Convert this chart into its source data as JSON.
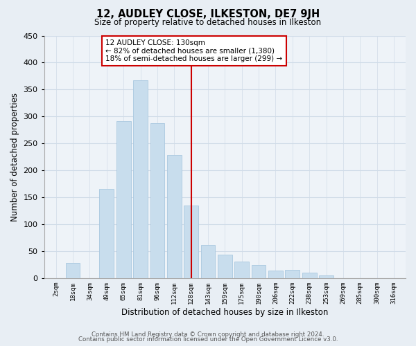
{
  "title": "12, AUDLEY CLOSE, ILKESTON, DE7 9JH",
  "subtitle": "Size of property relative to detached houses in Ilkeston",
  "xlabel": "Distribution of detached houses by size in Ilkeston",
  "ylabel": "Number of detached properties",
  "bar_labels": [
    "2sqm",
    "18sqm",
    "34sqm",
    "49sqm",
    "65sqm",
    "81sqm",
    "96sqm",
    "112sqm",
    "128sqm",
    "143sqm",
    "159sqm",
    "175sqm",
    "190sqm",
    "206sqm",
    "222sqm",
    "238sqm",
    "253sqm",
    "269sqm",
    "285sqm",
    "300sqm",
    "316sqm"
  ],
  "bar_heights": [
    0,
    28,
    0,
    165,
    292,
    367,
    288,
    228,
    135,
    62,
    44,
    30,
    24,
    14,
    15,
    10,
    5,
    0,
    0,
    0,
    0
  ],
  "bar_color": "#c8dded",
  "bar_edge_color": "#aac8e0",
  "reference_line_index": 8,
  "annotation_title": "12 AUDLEY CLOSE: 130sqm",
  "annotation_line1": "← 82% of detached houses are smaller (1,380)",
  "annotation_line2": "18% of semi-detached houses are larger (299) →",
  "ylim": [
    0,
    450
  ],
  "yticks": [
    0,
    50,
    100,
    150,
    200,
    250,
    300,
    350,
    400,
    450
  ],
  "footer1": "Contains HM Land Registry data © Crown copyright and database right 2024.",
  "footer2": "Contains public sector information licensed under the Open Government Licence v3.0.",
  "bg_color": "#e8eef4",
  "plot_bg_color": "#eef3f8",
  "grid_color": "#d0dce8"
}
